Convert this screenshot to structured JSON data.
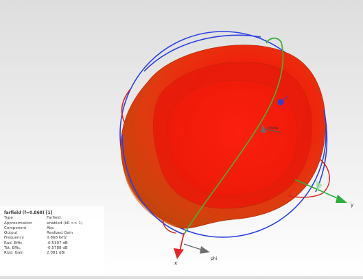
{
  "info": {
    "title": "farfield (f=0.868) [1]",
    "rows": [
      {
        "key": "Type",
        "value": "Farfield"
      },
      {
        "key": "Approximation",
        "value": "enabled (kR >> 1)"
      },
      {
        "key": "Component",
        "value": "Abs"
      },
      {
        "key": "Output",
        "value": "Realized Gain"
      },
      {
        "key": "Frequency",
        "value": "0.868 GHz"
      },
      {
        "key": "Rad. Effic.",
        "value": "-0.5397 dB"
      },
      {
        "key": "Tot. Effic.",
        "value": "-0.5788 dB"
      },
      {
        "key": "Rlzd. Gain",
        "value": "2.081 dBi"
      }
    ]
  },
  "axes": {
    "x_label": "x",
    "y_label": "y",
    "phi_label": "phi",
    "theta_label": "theta"
  },
  "colors": {
    "pattern_fill": "#e01410",
    "x_axis": "#e52525",
    "y_axis": "#27b03a",
    "z_axis": "#3040d0",
    "cut_blue": "#2a3fe0",
    "cut_green": "#2fae2f",
    "cut_red": "#d82020"
  }
}
